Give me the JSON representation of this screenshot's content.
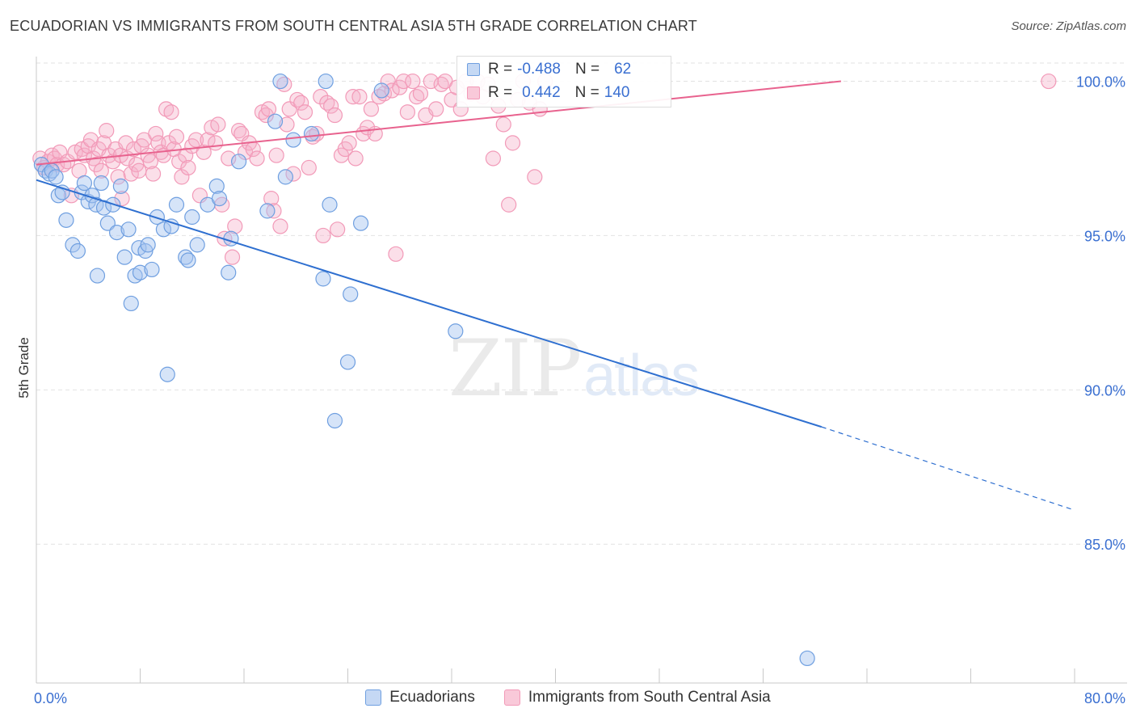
{
  "title": "ECUADORIAN VS IMMIGRANTS FROM SOUTH CENTRAL ASIA 5TH GRADE CORRELATION CHART",
  "source": "Source: ZipAtlas.com",
  "watermark": {
    "zip": "ZIP",
    "atlas": "atlas"
  },
  "colors": {
    "blue": "#6f9fe0",
    "blue_line": "#2e6fd0",
    "pink": "#f29ab8",
    "pink_line": "#e8628e",
    "tick_text": "#3a6fd1"
  },
  "legend": {
    "rows": [
      {
        "r_label": "R =",
        "r_value": "-0.488",
        "n_label": "N =",
        "n_value": "62"
      },
      {
        "r_label": "R =",
        "r_value": "0.442",
        "n_label": "N =",
        "n_value": "140"
      }
    ]
  },
  "bottom_legend": [
    "Ecuadorians",
    "Immigrants from South Central Asia"
  ],
  "chart_data": {
    "type": "scatter",
    "xlabel": "",
    "ylabel": "5th Grade",
    "xlim": [
      0,
      80
    ],
    "ylim": [
      80.5,
      100.8
    ],
    "x_tick_labels": [
      {
        "value": 0,
        "label": "0.0%"
      },
      {
        "value": 80,
        "label": "80.0%"
      }
    ],
    "y_tick_labels": [
      {
        "value": 100,
        "label": "100.0%"
      },
      {
        "value": 95,
        "label": "95.0%"
      },
      {
        "value": 90,
        "label": "90.0%"
      },
      {
        "value": 85,
        "label": "85.0%"
      }
    ],
    "grid": "horizontal dashed",
    "series": [
      {
        "name": "Ecuadorians",
        "trend": {
          "x0": 0,
          "y0": 96.8,
          "x1": 60.5,
          "y1": 88.8,
          "dash_to_x": 80,
          "dash_to_y": 86.1
        },
        "points": [
          [
            0.4,
            97.3
          ],
          [
            0.7,
            97.1
          ],
          [
            1.0,
            97.0
          ],
          [
            1.2,
            97.1
          ],
          [
            1.5,
            96.9
          ],
          [
            1.7,
            96.3
          ],
          [
            2.0,
            96.4
          ],
          [
            2.3,
            95.5
          ],
          [
            2.8,
            94.7
          ],
          [
            3.2,
            94.5
          ],
          [
            3.5,
            96.4
          ],
          [
            3.7,
            96.7
          ],
          [
            4.0,
            96.1
          ],
          [
            4.3,
            96.3
          ],
          [
            4.6,
            96.0
          ],
          [
            4.7,
            93.7
          ],
          [
            5.0,
            96.7
          ],
          [
            5.2,
            95.9
          ],
          [
            5.5,
            95.4
          ],
          [
            5.9,
            96.0
          ],
          [
            6.2,
            95.1
          ],
          [
            6.5,
            96.6
          ],
          [
            6.8,
            94.3
          ],
          [
            7.1,
            95.2
          ],
          [
            7.3,
            92.8
          ],
          [
            7.6,
            93.7
          ],
          [
            7.9,
            94.6
          ],
          [
            8.0,
            93.8
          ],
          [
            8.4,
            94.5
          ],
          [
            8.6,
            94.7
          ],
          [
            8.9,
            93.9
          ],
          [
            9.3,
            95.6
          ],
          [
            9.8,
            95.2
          ],
          [
            10.1,
            90.5
          ],
          [
            10.4,
            95.3
          ],
          [
            10.8,
            96.0
          ],
          [
            11.5,
            94.3
          ],
          [
            11.7,
            94.2
          ],
          [
            12.0,
            95.6
          ],
          [
            12.4,
            94.7
          ],
          [
            13.2,
            96.0
          ],
          [
            13.9,
            96.6
          ],
          [
            14.1,
            96.2
          ],
          [
            14.8,
            93.8
          ],
          [
            15.0,
            94.9
          ],
          [
            15.6,
            97.4
          ],
          [
            17.8,
            95.8
          ],
          [
            18.4,
            98.7
          ],
          [
            18.8,
            100.0
          ],
          [
            19.2,
            96.9
          ],
          [
            19.8,
            98.1
          ],
          [
            21.2,
            98.3
          ],
          [
            22.3,
            100.0
          ],
          [
            22.1,
            93.6
          ],
          [
            22.6,
            96.0
          ],
          [
            23.0,
            89.0
          ],
          [
            24.0,
            90.9
          ],
          [
            24.2,
            93.1
          ],
          [
            25.0,
            95.4
          ],
          [
            26.6,
            99.7
          ],
          [
            32.3,
            91.9
          ],
          [
            59.4,
            81.3
          ]
        ]
      },
      {
        "name": "Immigrants from South Central Asia",
        "trend": {
          "x0": 0,
          "y0": 97.3,
          "x1": 62.0,
          "y1": 100.0
        },
        "points": [
          [
            0.3,
            97.5
          ],
          [
            0.6,
            97.2
          ],
          [
            0.9,
            97.4
          ],
          [
            1.2,
            97.6
          ],
          [
            1.4,
            97.5
          ],
          [
            1.6,
            97.3
          ],
          [
            1.8,
            97.7
          ],
          [
            2.1,
            97.3
          ],
          [
            2.4,
            97.4
          ],
          [
            2.7,
            96.3
          ],
          [
            3.0,
            97.7
          ],
          [
            3.3,
            97.1
          ],
          [
            3.5,
            97.8
          ],
          [
            3.7,
            97.6
          ],
          [
            4.0,
            97.9
          ],
          [
            4.2,
            98.1
          ],
          [
            4.4,
            97.5
          ],
          [
            4.6,
            97.3
          ],
          [
            4.8,
            97.8
          ],
          [
            5.0,
            97.1
          ],
          [
            5.2,
            98.0
          ],
          [
            5.4,
            98.4
          ],
          [
            5.6,
            97.6
          ],
          [
            5.9,
            97.4
          ],
          [
            6.1,
            97.8
          ],
          [
            6.3,
            96.9
          ],
          [
            6.5,
            97.6
          ],
          [
            6.6,
            96.2
          ],
          [
            6.9,
            98.0
          ],
          [
            7.0,
            97.5
          ],
          [
            7.3,
            97.0
          ],
          [
            7.5,
            97.8
          ],
          [
            7.7,
            97.3
          ],
          [
            7.9,
            97.1
          ],
          [
            8.1,
            97.9
          ],
          [
            8.3,
            98.1
          ],
          [
            8.6,
            97.6
          ],
          [
            8.8,
            97.4
          ],
          [
            9.0,
            97.0
          ],
          [
            9.2,
            98.3
          ],
          [
            9.4,
            98.0
          ],
          [
            9.6,
            97.7
          ],
          [
            9.8,
            97.6
          ],
          [
            10.0,
            99.1
          ],
          [
            10.2,
            98.0
          ],
          [
            10.4,
            99.0
          ],
          [
            10.6,
            97.8
          ],
          [
            10.8,
            98.2
          ],
          [
            11.0,
            97.4
          ],
          [
            11.2,
            96.9
          ],
          [
            11.5,
            97.6
          ],
          [
            11.7,
            97.2
          ],
          [
            12.0,
            97.9
          ],
          [
            12.3,
            98.1
          ],
          [
            12.6,
            96.3
          ],
          [
            12.9,
            97.7
          ],
          [
            13.2,
            98.1
          ],
          [
            13.5,
            98.5
          ],
          [
            13.8,
            98.0
          ],
          [
            14.0,
            98.6
          ],
          [
            14.3,
            96.0
          ],
          [
            14.5,
            94.9
          ],
          [
            14.8,
            97.5
          ],
          [
            15.1,
            94.3
          ],
          [
            15.3,
            95.3
          ],
          [
            15.6,
            98.4
          ],
          [
            15.8,
            98.3
          ],
          [
            16.1,
            97.7
          ],
          [
            16.4,
            98.0
          ],
          [
            16.7,
            97.8
          ],
          [
            17.0,
            97.5
          ],
          [
            17.4,
            99.0
          ],
          [
            17.7,
            98.9
          ],
          [
            17.9,
            99.1
          ],
          [
            18.1,
            96.2
          ],
          [
            18.3,
            95.8
          ],
          [
            18.5,
            97.6
          ],
          [
            18.8,
            95.3
          ],
          [
            19.1,
            99.9
          ],
          [
            19.3,
            98.6
          ],
          [
            19.5,
            99.1
          ],
          [
            19.8,
            97.0
          ],
          [
            20.1,
            99.4
          ],
          [
            20.4,
            99.3
          ],
          [
            20.7,
            99.0
          ],
          [
            21.0,
            97.2
          ],
          [
            21.3,
            98.2
          ],
          [
            21.6,
            98.3
          ],
          [
            21.9,
            99.5
          ],
          [
            22.1,
            95.0
          ],
          [
            22.4,
            99.3
          ],
          [
            22.7,
            99.2
          ],
          [
            23.0,
            98.9
          ],
          [
            23.2,
            95.2
          ],
          [
            23.5,
            97.6
          ],
          [
            23.8,
            97.8
          ],
          [
            24.1,
            98.0
          ],
          [
            24.4,
            99.5
          ],
          [
            24.6,
            97.5
          ],
          [
            24.9,
            99.5
          ],
          [
            25.2,
            98.3
          ],
          [
            25.5,
            98.5
          ],
          [
            25.8,
            99.1
          ],
          [
            26.1,
            98.3
          ],
          [
            26.4,
            99.5
          ],
          [
            26.8,
            99.6
          ],
          [
            27.1,
            100.0
          ],
          [
            27.4,
            99.7
          ],
          [
            27.7,
            94.4
          ],
          [
            28.0,
            99.8
          ],
          [
            28.3,
            100.0
          ],
          [
            28.6,
            99.0
          ],
          [
            29.0,
            100.0
          ],
          [
            29.3,
            99.5
          ],
          [
            29.6,
            99.6
          ],
          [
            30.0,
            98.9
          ],
          [
            30.4,
            100.0
          ],
          [
            30.8,
            99.1
          ],
          [
            31.2,
            99.9
          ],
          [
            31.5,
            100.0
          ],
          [
            32.0,
            99.4
          ],
          [
            32.4,
            99.8
          ],
          [
            32.7,
            99.1
          ],
          [
            33.1,
            100.0
          ],
          [
            33.5,
            99.6
          ],
          [
            34.0,
            100.0
          ],
          [
            34.4,
            99.5
          ],
          [
            34.8,
            99.9
          ],
          [
            35.2,
            97.5
          ],
          [
            35.6,
            99.2
          ],
          [
            36.0,
            98.6
          ],
          [
            36.4,
            96.0
          ],
          [
            36.7,
            98.0
          ],
          [
            37.1,
            99.4
          ],
          [
            37.5,
            100.0
          ],
          [
            38.0,
            99.3
          ],
          [
            38.4,
            96.9
          ],
          [
            38.8,
            99.1
          ],
          [
            39.2,
            100.0
          ],
          [
            78.0,
            100.0
          ]
        ]
      }
    ]
  }
}
